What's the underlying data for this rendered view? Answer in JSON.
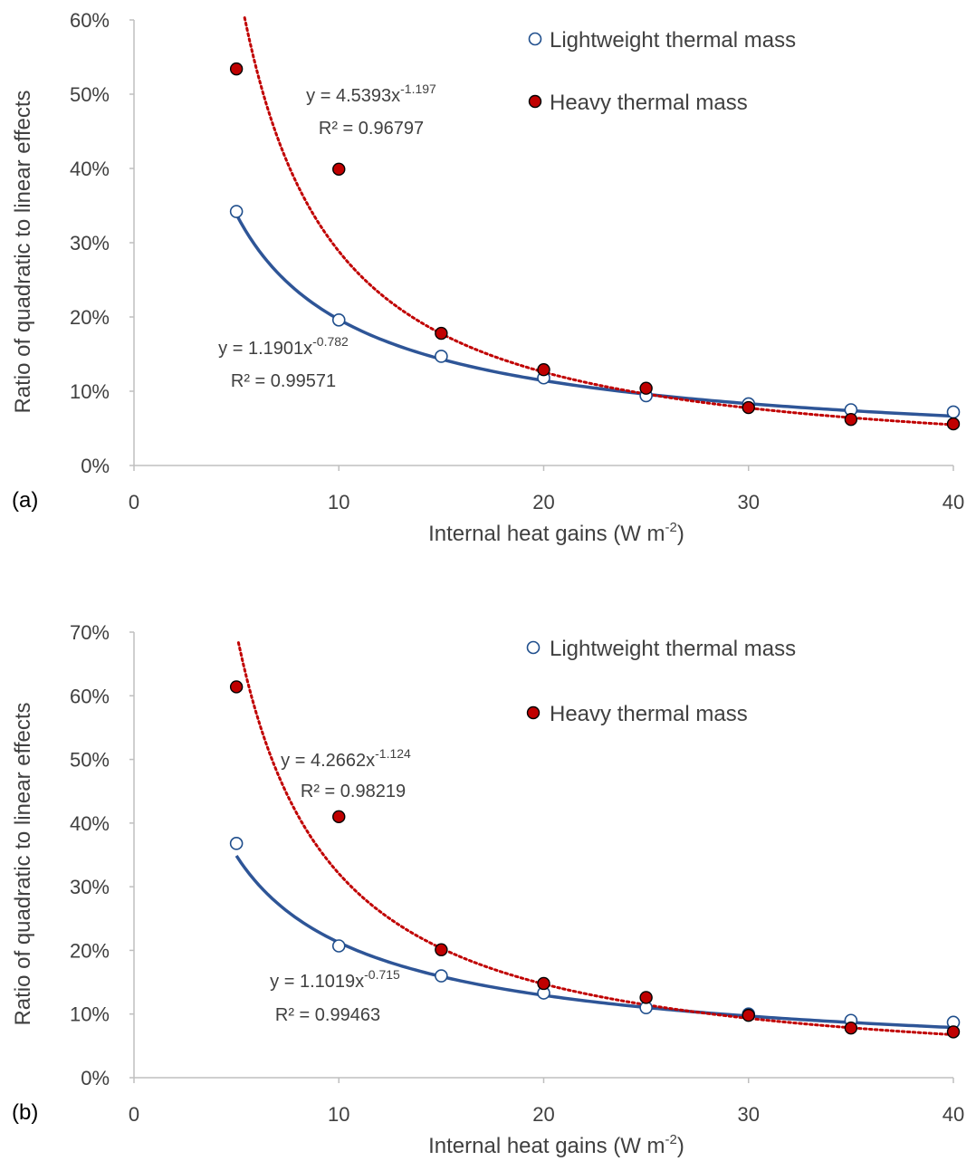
{
  "chart_data": [
    {
      "panel_label": "(a)",
      "type": "scatter",
      "xlabel": "Internal heat gains (W m",
      "xlabel_sup": "-2",
      "xlabel_tail": ")",
      "ylabel": "Ratio of quadratic to linear effects",
      "xlim": [
        0,
        40
      ],
      "ylim": [
        0,
        0.6
      ],
      "xticks": [
        "0",
        "10",
        "20",
        "30",
        "40"
      ],
      "yticks": [
        "0%",
        "10%",
        "20%",
        "30%",
        "40%",
        "50%",
        "60%"
      ],
      "legend_position": "top-right",
      "series": [
        {
          "name": "Lightweight thermal mass",
          "marker": "open-circle",
          "color": "#1f4e8c",
          "x": [
            5,
            10,
            15,
            20,
            25,
            30,
            35,
            40
          ],
          "y": [
            0.342,
            0.196,
            0.147,
            0.118,
            0.094,
            0.083,
            0.075,
            0.072
          ],
          "trendline": {
            "equation_prefix": "y = 1.1901x",
            "exponent": "-0.782",
            "r2_label": "R² = 0.99571",
            "a": 1.1901,
            "b": -0.782,
            "style": "solid",
            "color": "#2e5597",
            "x_range": [
              5,
              40
            ]
          }
        },
        {
          "name": "Heavy thermal mass",
          "marker": "filled-circle",
          "color": "#c00000",
          "x": [
            5,
            10,
            15,
            20,
            25,
            30,
            35,
            40
          ],
          "y": [
            0.534,
            0.399,
            0.178,
            0.129,
            0.104,
            0.078,
            0.062,
            0.056
          ],
          "trendline": {
            "equation_prefix": "y = 4.5393x",
            "exponent": "-1.197",
            "r2_label": "R² = 0.96797",
            "a": 4.5393,
            "b": -1.197,
            "style": "dotted",
            "color": "#c00000",
            "x_range": [
              5.4,
              40
            ]
          }
        }
      ]
    },
    {
      "panel_label": "(b)",
      "type": "scatter",
      "xlabel": "Internal heat gains (W m",
      "xlabel_sup": "-2",
      "xlabel_tail": ")",
      "ylabel": "Ratio of quadratic to linear effects",
      "xlim": [
        0,
        40
      ],
      "ylim": [
        0,
        0.7
      ],
      "xticks": [
        "0",
        "10",
        "20",
        "30",
        "40"
      ],
      "yticks": [
        "0%",
        "10%",
        "20%",
        "30%",
        "40%",
        "50%",
        "60%",
        "70%"
      ],
      "legend_position": "top-right",
      "series": [
        {
          "name": "Lightweight thermal mass",
          "marker": "open-circle",
          "color": "#1f4e8c",
          "x": [
            5,
            10,
            15,
            20,
            25,
            30,
            35,
            40
          ],
          "y": [
            0.368,
            0.207,
            0.16,
            0.133,
            0.11,
            0.1,
            0.09,
            0.087
          ],
          "trendline": {
            "equation_prefix": "y = 1.1019x",
            "exponent": "-0.715",
            "r2_label": "R² = 0.99463",
            "a": 1.1019,
            "b": -0.715,
            "style": "solid",
            "color": "#2e5597",
            "x_range": [
              5,
              40
            ]
          }
        },
        {
          "name": "Heavy thermal mass",
          "marker": "filled-circle",
          "color": "#c00000",
          "x": [
            5,
            10,
            15,
            20,
            25,
            30,
            35,
            40
          ],
          "y": [
            0.614,
            0.41,
            0.201,
            0.148,
            0.126,
            0.098,
            0.078,
            0.072
          ],
          "trendline": {
            "equation_prefix": "y = 4.2662x",
            "exponent": "-1.124",
            "r2_label": "R² = 0.98219",
            "a": 4.2662,
            "b": -1.124,
            "style": "dotted",
            "color": "#c00000",
            "x_range": [
              5.1,
              40
            ]
          }
        }
      ]
    }
  ]
}
